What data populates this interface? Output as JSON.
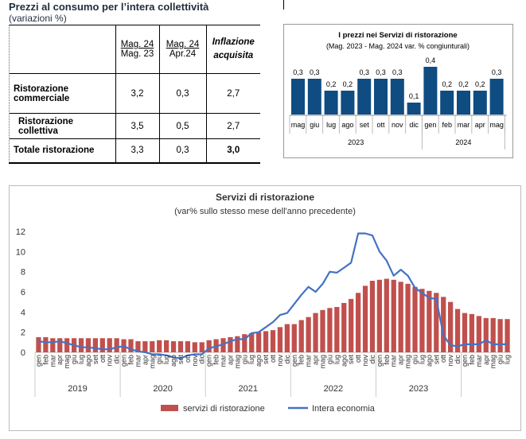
{
  "header": {
    "title": "Prezzi al consumo per l’intera collettività",
    "subtitle": "(variazioni %)"
  },
  "table": {
    "columns": [
      {
        "line1": "Mag. 24",
        "line2": "Mag. 23"
      },
      {
        "line1": "Mag. 24",
        "line2": "Apr.24"
      },
      {
        "line1": "Inflazione",
        "line2": "acquisita"
      }
    ],
    "rows": [
      {
        "label1": "Ristorazione",
        "label2": "commerciale",
        "values": [
          "3,2",
          "0,3",
          "2,7"
        ]
      },
      {
        "label1": "Ristorazione collettiva",
        "label2": "",
        "values": [
          "3,5",
          "0,5",
          "2,7"
        ]
      },
      {
        "label1": "Totale ristorazione",
        "label2": "",
        "values": [
          "3,3",
          "0,3",
          "3,0"
        ]
      }
    ]
  },
  "chart_data": [
    {
      "type": "bar",
      "title": "I prezzi nei Servizi di ristorazione",
      "subtitle": "(Mag. 2023 - Mag. 2024 var. % congiunturali)",
      "categories": [
        "mag",
        "giu",
        "lug",
        "ago",
        "set",
        "ott",
        "nov",
        "dic",
        "gen",
        "feb",
        "mar",
        "apr",
        "mag"
      ],
      "values": [
        0.3,
        0.3,
        0.2,
        0.2,
        0.3,
        0.3,
        0.3,
        0.1,
        0.4,
        0.2,
        0.2,
        0.2,
        0.3
      ],
      "data_labels": [
        "0,3",
        "0,3",
        "0,2",
        "0,2",
        "0,3",
        "0,3",
        "0,3",
        "0,1",
        "0,4",
        "0,2",
        "0,2",
        "0,2",
        "0,3"
      ],
      "year_groups": [
        {
          "label": "2023",
          "count": 8
        },
        {
          "label": "2024",
          "count": 5
        }
      ],
      "color": "#0f4c81"
    },
    {
      "type": "bar+line",
      "title": "Servizi di ristorazione",
      "subtitle": "(var% sullo stesso mese dell'anno precedente)",
      "ylim": [
        0,
        12
      ],
      "yticks": [
        "0",
        "2",
        "4",
        "6",
        "8",
        "10",
        "12"
      ],
      "month_labels": [
        "gen",
        "feb",
        "mar",
        "apr",
        "mag",
        "giu",
        "lug",
        "ago",
        "set",
        "ott",
        "nov",
        "dic"
      ],
      "years": [
        "2019",
        "2020",
        "2021",
        "2022",
        "2023"
      ],
      "series": [
        {
          "name": "servizi di ristorazione",
          "kind": "bar",
          "color": "#c0504d",
          "values": [
            1.5,
            1.5,
            1.4,
            1.4,
            1.4,
            1.4,
            1.4,
            1.4,
            1.4,
            1.4,
            1.4,
            1.4,
            1.3,
            1.3,
            1.1,
            1.1,
            1.1,
            1.2,
            1.2,
            1.1,
            1.1,
            1.1,
            1.0,
            1.0,
            1.2,
            1.3,
            1.4,
            1.5,
            1.6,
            1.8,
            1.9,
            2.0,
            2.1,
            2.2,
            2.5,
            2.8,
            2.8,
            3.2,
            3.5,
            3.9,
            4.2,
            4.4,
            4.5,
            4.9,
            5.3,
            5.9,
            6.6,
            7.1,
            7.2,
            7.3,
            7.2,
            7.0,
            6.8,
            6.5,
            6.3,
            6.1,
            5.9,
            5.5,
            5.0,
            4.3,
            3.9,
            3.8,
            3.6,
            3.4,
            3.4,
            3.3,
            3.3
          ]
        },
        {
          "name": "Intera economia",
          "kind": "line",
          "color": "#4472c4",
          "values": [
            1.1,
            1.0,
            1.0,
            1.1,
            0.9,
            0.7,
            0.5,
            0.5,
            0.4,
            0.3,
            0.3,
            0.5,
            0.6,
            0.3,
            0.1,
            0.0,
            -0.2,
            -0.2,
            -0.3,
            -0.5,
            -0.6,
            -0.3,
            -0.2,
            -0.2,
            0.4,
            0.6,
            0.8,
            1.1,
            1.3,
            1.3,
            1.9,
            2.0,
            2.5,
            3.0,
            3.7,
            3.9,
            4.8,
            5.7,
            6.5,
            6.0,
            6.8,
            8.0,
            7.9,
            8.4,
            8.9,
            11.8,
            11.8,
            11.6,
            10.0,
            9.1,
            7.6,
            8.2,
            7.6,
            6.4,
            5.9,
            5.4,
            5.3,
            1.7,
            0.7,
            0.6,
            0.8,
            0.8,
            0.8,
            1.2,
            0.8,
            0.8,
            0.8
          ]
        }
      ]
    }
  ]
}
